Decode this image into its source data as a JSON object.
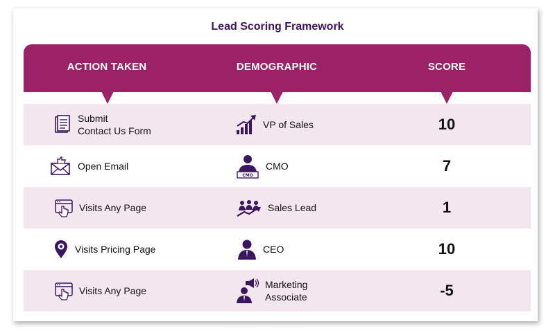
{
  "title": "Lead Scoring Framework",
  "colors": {
    "header": "#9b2266",
    "row_alt": "#f3e7ee",
    "title": "#3b1660",
    "icon": "#3b1660"
  },
  "columns": [
    {
      "label": "ACTION TAKEN"
    },
    {
      "label": "DEMOGRAPHIC"
    },
    {
      "label": "SCORE"
    }
  ],
  "rows": [
    {
      "action": "Submit\nContact Us Form",
      "action_icon": "document-icon",
      "demographic": "VP of Sales",
      "demo_icon": "growth-chart-icon",
      "score": "10"
    },
    {
      "action": "Open Email",
      "action_icon": "email-thumbs-up-icon",
      "demographic": "CMO",
      "demo_icon": "cmo-person-icon",
      "score": "7"
    },
    {
      "action": "Visits Any Page",
      "action_icon": "browser-click-icon",
      "demographic": "Sales Lead",
      "demo_icon": "team-growth-icon",
      "score": "1"
    },
    {
      "action": "Visits Pricing Page",
      "action_icon": "location-pin-icon",
      "demographic": "CEO",
      "demo_icon": "person-icon",
      "score": "10"
    },
    {
      "action": "Visits Any Page",
      "action_icon": "browser-click-icon",
      "demographic": "Marketing\nAssociate",
      "demo_icon": "megaphone-person-icon",
      "score": "-5"
    }
  ]
}
